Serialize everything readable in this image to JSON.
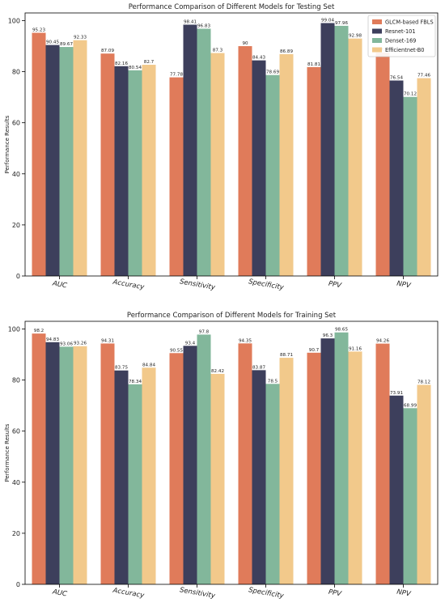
{
  "colors": {
    "series": [
      "#e07b5a",
      "#3d3f5c",
      "#82b79b",
      "#f2c98b"
    ],
    "frame": "#000000",
    "legend_border": "#cccccc"
  },
  "chart_data": [
    {
      "type": "bar",
      "title": "Performance Comparison of Different Models for Testing Set",
      "ylabel": "Performance Results",
      "ylim": [
        0,
        103
      ],
      "yticks": [
        0,
        20,
        40,
        60,
        80,
        100
      ],
      "grid": false,
      "legend": "top-right",
      "categories": [
        "AUC",
        "Accuracy",
        "Sensitivity",
        "Specificity",
        "PPV",
        "NPV"
      ],
      "series": [
        {
          "name": "GLCM-based FBLS",
          "values": [
            95.23,
            87.09,
            77.78,
            90,
            81.81,
            87.5
          ]
        },
        {
          "name": "Resnet-101",
          "values": [
            90.45,
            82.16,
            98.41,
            84.43,
            99.04,
            76.54
          ]
        },
        {
          "name": "Denset-169",
          "values": [
            89.67,
            80.54,
            96.83,
            78.69,
            97.96,
            70.12
          ]
        },
        {
          "name": "Efficientnet-B0",
          "values": [
            92.33,
            82.7,
            87.3,
            86.89,
            92.98,
            77.46
          ]
        }
      ]
    },
    {
      "type": "bar",
      "title": "Performance Comparison of Different Models for Training Set",
      "ylabel": "Performance Results",
      "ylim": [
        0,
        103
      ],
      "yticks": [
        0,
        20,
        40,
        60,
        80,
        100
      ],
      "grid": false,
      "legend": "none",
      "categories": [
        "AUC",
        "Accuracy",
        "Sensitivity",
        "Specificity",
        "PPV",
        "NPV"
      ],
      "series": [
        {
          "name": "GLCM-based FBLS",
          "values": [
            98.2,
            94.31,
            90.55,
            94.35,
            90.7,
            94.26
          ]
        },
        {
          "name": "Resnet-101",
          "values": [
            94.83,
            83.75,
            93.4,
            83.87,
            96.3,
            73.91
          ]
        },
        {
          "name": "Denset-169",
          "values": [
            93.06,
            78.34,
            97.8,
            78.5,
            98.65,
            68.99
          ]
        },
        {
          "name": "Efficientnet-B0",
          "values": [
            93.26,
            84.84,
            82.42,
            88.71,
            91.16,
            78.12
          ]
        }
      ]
    }
  ]
}
